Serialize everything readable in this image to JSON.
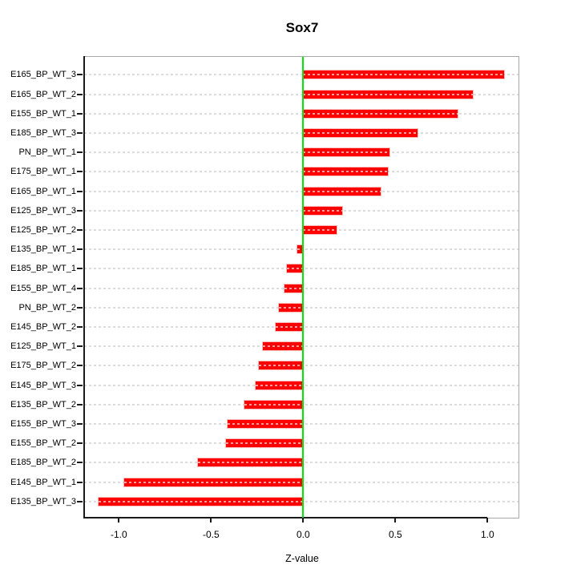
{
  "chart_data": {
    "type": "bar",
    "orientation": "horizontal",
    "title": "Sox7",
    "xlabel": "Z-value",
    "ylabel": "",
    "categories": [
      "E165_BP_WT_3",
      "E165_BP_WT_2",
      "E155_BP_WT_1",
      "E185_BP_WT_3",
      "PN_BP_WT_1",
      "E175_BP_WT_1",
      "E165_BP_WT_1",
      "E125_BP_WT_3",
      "E125_BP_WT_2",
      "E135_BP_WT_1",
      "E185_BP_WT_1",
      "E155_BP_WT_4",
      "PN_BP_WT_2",
      "E145_BP_WT_2",
      "E125_BP_WT_1",
      "E175_BP_WT_2",
      "E145_BP_WT_3",
      "E135_BP_WT_2",
      "E155_BP_WT_3",
      "E155_BP_WT_2",
      "E185_BP_WT_2",
      "E145_BP_WT_1",
      "E135_BP_WT_3"
    ],
    "values": [
      1.09,
      0.92,
      0.84,
      0.62,
      0.47,
      0.46,
      0.42,
      0.21,
      0.18,
      -0.03,
      -0.09,
      -0.1,
      -0.13,
      -0.15,
      -0.22,
      -0.24,
      -0.26,
      -0.32,
      -0.41,
      -0.42,
      -0.57,
      -0.97,
      -1.11
    ],
    "xlim": [
      -1.19,
      1.17
    ],
    "x_ticks": [
      -1.0,
      -0.5,
      0.0,
      0.5,
      1.0
    ],
    "x_tick_labels": [
      "-1.0",
      "-0.5",
      "0.0",
      "0.5",
      "1.0"
    ],
    "zero_reference_line": 0.0,
    "grid": "horizontal dashed line per category",
    "legend_position": "none",
    "colors": {
      "bar": "#fe0000",
      "zero_line": "#00e608",
      "grid": "#dcdcdc",
      "box_border": "#a8a8a8",
      "axis": "#1a1a1a",
      "text": "#000000"
    }
  }
}
